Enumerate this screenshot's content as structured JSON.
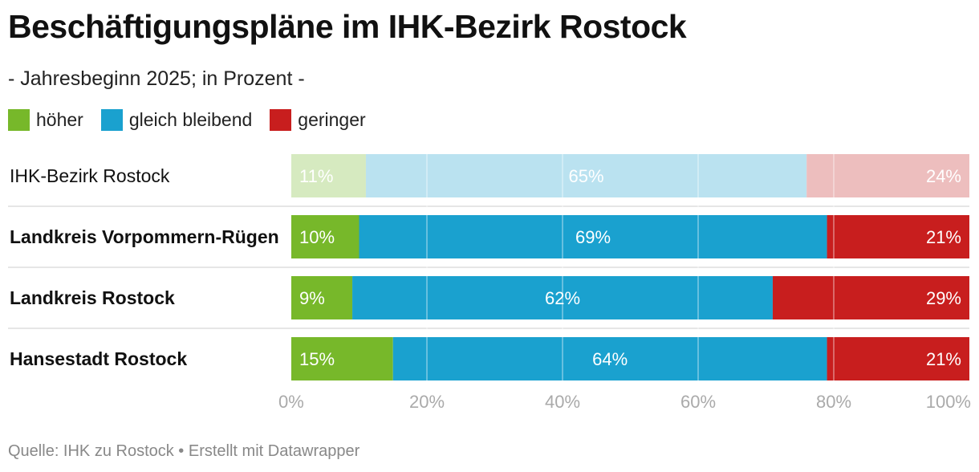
{
  "header": {
    "title": "Beschäftigungspläne im IHK-Bezirk Rostock",
    "subtitle": "- Jahresbeginn 2025; in Prozent -"
  },
  "footer": {
    "source": "Quelle: IHK zu Rostock • Erstellt mit Datawrapper"
  },
  "colors": {
    "hoeher": "#77b82a",
    "gleich": "#1aa1cf",
    "geringer": "#c81e1e",
    "hoeher_light": "#d6eac0",
    "gleich_light": "#bae2f0",
    "geringer_light": "#edbebe"
  },
  "chart_data": {
    "type": "bar",
    "orientation": "horizontal",
    "stacked": true,
    "categories": [
      "IHK-Bezirk Rostock",
      "Landkreis Vorpommern-Rügen",
      "Landkreis Rostock",
      "Hansestadt Rostock"
    ],
    "category_bold": [
      false,
      true,
      true,
      true
    ],
    "category_highlight": [
      false,
      true,
      true,
      true
    ],
    "series": [
      {
        "name": "höher",
        "values": [
          11,
          10,
          9,
          15
        ],
        "labels": [
          "11%",
          "10%",
          "9%",
          "15%"
        ]
      },
      {
        "name": "gleich bleibend",
        "values": [
          65,
          69,
          62,
          64
        ],
        "labels": [
          "65%",
          "69%",
          "62%",
          "64%"
        ]
      },
      {
        "name": "geringer",
        "values": [
          24,
          21,
          29,
          21
        ],
        "labels": [
          "24%",
          "21%",
          "29%",
          "21%"
        ]
      }
    ],
    "xlim": [
      0,
      100
    ],
    "xticks": [
      0,
      20,
      40,
      60,
      80,
      100
    ],
    "xtick_labels": [
      "0%",
      "20%",
      "40%",
      "60%",
      "80%",
      "100%"
    ],
    "grid": true,
    "legend_position": "top-left"
  }
}
